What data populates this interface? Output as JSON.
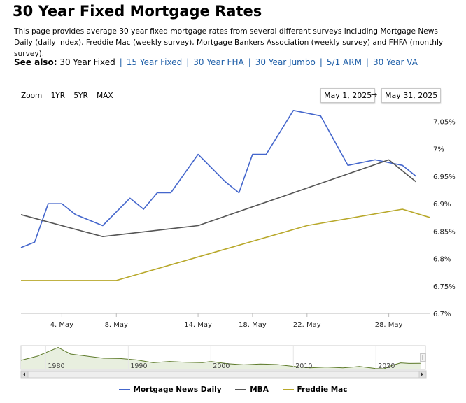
{
  "page": {
    "title": "30 Year Fixed Mortgage Rates",
    "intro": "This page provides average 30 year fixed mortgage rates from several different surveys including Mortgage News Daily (daily index), Freddie Mac (weekly survey), Mortgage Bankers Association (weekly survey) and FHFA (monthly survey).",
    "see_also_label": "See also:",
    "see_also": [
      "30 Year Fixed",
      "15 Year Fixed",
      "30 Year FHA",
      "30 Year Jumbo",
      "5/1 ARM",
      "30 Year VA"
    ],
    "current_see_also": "30 Year Fixed"
  },
  "controls": {
    "zoom_label": "Zoom",
    "zoom_buttons": [
      "1YR",
      "5YR",
      "MAX"
    ],
    "date_from": "May 1, 2025",
    "date_arrow": "→",
    "date_to": "May 31, 2025"
  },
  "colors": {
    "mnd": "#4466cc",
    "mba": "#555555",
    "freddie": "#b8a82a",
    "navigator_line": "#5d7a2a",
    "navigator_fill": "#e8efdf"
  },
  "chart_data": {
    "type": "line",
    "y_tick_labels": [
      "6.7%",
      "6.75%",
      "6.8%",
      "6.85%",
      "6.9%",
      "6.95%",
      "7%",
      "7.05%"
    ],
    "y_ticks": [
      6.7,
      6.75,
      6.8,
      6.85,
      6.9,
      6.95,
      7.0,
      7.05
    ],
    "ylim": [
      6.7,
      7.08
    ],
    "x_tick_labels": [
      "4. May",
      "8. May",
      "14. May",
      "18. May",
      "22. May",
      "28. May"
    ],
    "x_ticks": [
      "2025-05-04",
      "2025-05-08",
      "2025-05-14",
      "2025-05-18",
      "2025-05-22",
      "2025-05-28"
    ],
    "xlim": [
      "2025-05-01",
      "2025-05-31"
    ],
    "legend_position": "bottom",
    "series": [
      {
        "name": "Mortgage News Daily",
        "color": "#4466cc",
        "points": [
          [
            "2025-05-01",
            6.82
          ],
          [
            "2025-05-02",
            6.83
          ],
          [
            "2025-05-03",
            6.9
          ],
          [
            "2025-05-04",
            6.9
          ],
          [
            "2025-05-05",
            6.88
          ],
          [
            "2025-05-07",
            6.86
          ],
          [
            "2025-05-09",
            6.91
          ],
          [
            "2025-05-10",
            6.89
          ],
          [
            "2025-05-11",
            6.92
          ],
          [
            "2025-05-12",
            6.92
          ],
          [
            "2025-05-14",
            6.99
          ],
          [
            "2025-05-16",
            6.94
          ],
          [
            "2025-05-17",
            6.92
          ],
          [
            "2025-05-18",
            6.99
          ],
          [
            "2025-05-19",
            6.99
          ],
          [
            "2025-05-21",
            7.07
          ],
          [
            "2025-05-23",
            7.06
          ],
          [
            "2025-05-25",
            6.97
          ],
          [
            "2025-05-27",
            6.98
          ],
          [
            "2025-05-29",
            6.97
          ],
          [
            "2025-05-30",
            6.95
          ]
        ]
      },
      {
        "name": "MBA",
        "color": "#555555",
        "points": [
          [
            "2025-05-01",
            6.88
          ],
          [
            "2025-05-07",
            6.84
          ],
          [
            "2025-05-14",
            6.86
          ],
          [
            "2025-05-21",
            6.92
          ],
          [
            "2025-05-28",
            6.98
          ],
          [
            "2025-05-30",
            6.94
          ]
        ]
      },
      {
        "name": "Freddie Mac",
        "color": "#b8a82a",
        "points": [
          [
            "2025-05-01",
            6.76
          ],
          [
            "2025-05-08",
            6.76
          ],
          [
            "2025-05-15",
            6.81
          ],
          [
            "2025-05-22",
            6.86
          ],
          [
            "2025-05-29",
            6.89
          ],
          [
            "2025-05-31",
            6.875
          ]
        ]
      }
    ],
    "navigator": {
      "x_tick_labels": [
        "1980",
        "1990",
        "2000",
        "2010",
        "2020"
      ],
      "x_ticks": [
        1980,
        1990,
        2000,
        2010,
        2020
      ],
      "xlim": [
        1977,
        2026
      ],
      "ylim": [
        2.5,
        19.5
      ],
      "series": [
        [
          1977,
          9
        ],
        [
          1979,
          12
        ],
        [
          1981.5,
          18.2
        ],
        [
          1983,
          13.5
        ],
        [
          1985,
          12
        ],
        [
          1987,
          10.5
        ],
        [
          1989,
          10.3
        ],
        [
          1991,
          9.3
        ],
        [
          1993,
          7.3
        ],
        [
          1995,
          8.2
        ],
        [
          1997,
          7.6
        ],
        [
          1999,
          7.4
        ],
        [
          2000,
          8.2
        ],
        [
          2002,
          6.6
        ],
        [
          2004,
          5.8
        ],
        [
          2006,
          6.4
        ],
        [
          2008,
          6.0
        ],
        [
          2010,
          4.7
        ],
        [
          2012,
          3.6
        ],
        [
          2014,
          4.2
        ],
        [
          2016,
          3.6
        ],
        [
          2018,
          4.6
        ],
        [
          2020,
          3.1
        ],
        [
          2021,
          3.0
        ],
        [
          2022,
          5.5
        ],
        [
          2023,
          7.2
        ],
        [
          2024,
          6.8
        ],
        [
          2025.4,
          6.9
        ]
      ]
    }
  }
}
